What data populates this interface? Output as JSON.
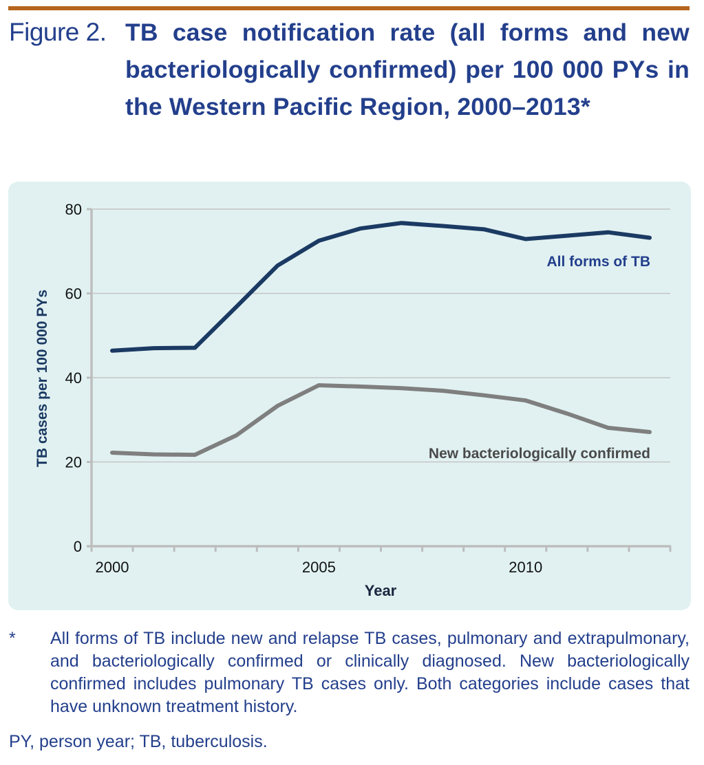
{
  "figure": {
    "label": "Figure 2.",
    "title": "TB case notification rate (all forms and new bacteriologically confirmed) per 100 000 PYs in the Western Pacific Region, 2000–2013*"
  },
  "footnote": {
    "marker": "*",
    "text": "All forms of TB include new and relapse TB cases, pulmonary and extrapulmonary, and bacteriologically confirmed or clinically diagnosed. New bacteriologically confirmed includes pulmonary TB cases only. Both categories include cases that have unknown treatment history."
  },
  "abbreviations": "PY, person year; TB, tuberculosis.",
  "colors": {
    "accent_rule": "#b5651d",
    "title_text": "#233f8c",
    "panel_bg": "#e1f1f1",
    "series_all_forms": "#1b3a63",
    "series_new_bact": "#7f7f7f",
    "gridline": "#c4c4c4"
  },
  "chart_data": {
    "type": "line",
    "title": "TB case notification rate (all forms and new bacteriologically confirmed) per 100 000 PYs in the Western Pacific Region, 2000–2013*",
    "xlabel": "Year",
    "ylabel": "TB cases per 100 000 PYs",
    "x": [
      2000,
      2001,
      2002,
      2003,
      2004,
      2005,
      2006,
      2007,
      2008,
      2009,
      2010,
      2011,
      2012,
      2013
    ],
    "x_tick_labels": [
      "2000",
      "2005",
      "2010"
    ],
    "y_ticks": [
      0,
      20,
      40,
      60,
      80
    ],
    "ylim": [
      0,
      80
    ],
    "grid": "horizontal",
    "legend": "inline labels near series ends (right)",
    "series": [
      {
        "name": "All forms of TB",
        "color": "#1b3a63",
        "values": [
          46.4,
          47.0,
          47.1,
          56.8,
          66.6,
          72.5,
          75.4,
          76.7,
          76.0,
          75.2,
          72.9,
          73.7,
          74.5,
          73.2
        ]
      },
      {
        "name": "New bacteriologically confirmed",
        "color": "#7f7f7f",
        "values": [
          22.2,
          21.8,
          21.7,
          26.3,
          33.3,
          38.2,
          37.9,
          37.5,
          36.9,
          35.8,
          34.6,
          31.5,
          28.1,
          27.1
        ]
      }
    ]
  }
}
